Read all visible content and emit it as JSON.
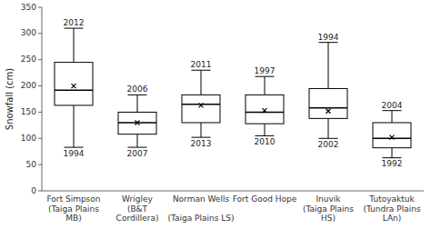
{
  "chart_data": {
    "type": "box",
    "categories": [
      "Fort Simpson\n(Taiga Plains\nMB)",
      "Wrigley\n(B&T\nCordillera)",
      "Norman Wells\n\n(Taiga Plains LS)",
      "Fort Good Hope\n\n",
      "Inuvik\n(Taiga Plains\nHS)",
      "Tutoyaktuk\n(Tundra Plains\nLAn)"
    ],
    "boxes": [
      {
        "whislo": 83,
        "q1": 163,
        "med": 192,
        "q3": 245,
        "whishi": 310,
        "mean": 200,
        "year_lo": "1994",
        "year_hi": "2012"
      },
      {
        "whislo": 83,
        "q1": 108,
        "med": 130,
        "q3": 150,
        "whishi": 183,
        "mean": 130,
        "year_lo": "2007",
        "year_hi": "2006"
      },
      {
        "whislo": 102,
        "q1": 130,
        "med": 165,
        "q3": 183,
        "whishi": 230,
        "mean": 163,
        "year_lo": "2013",
        "year_hi": "2011"
      },
      {
        "whislo": 105,
        "q1": 128,
        "med": 150,
        "q3": 183,
        "whishi": 218,
        "mean": 153,
        "year_lo": "2010",
        "year_hi": "1997"
      },
      {
        "whislo": 100,
        "q1": 138,
        "med": 158,
        "q3": 195,
        "whishi": 283,
        "mean": 152,
        "year_lo": "2002",
        "year_hi": "1994"
      },
      {
        "whislo": 63,
        "q1": 82,
        "med": 100,
        "q3": 130,
        "whishi": 153,
        "mean": 102,
        "year_lo": "1992",
        "year_hi": "2004"
      }
    ],
    "ylabel": "Snowfall (cm)",
    "ylim": [
      0,
      350
    ],
    "yticks": [
      0,
      50,
      100,
      150,
      200,
      250,
      300,
      350
    ],
    "color": "black",
    "marker": "x",
    "grid": false
  }
}
